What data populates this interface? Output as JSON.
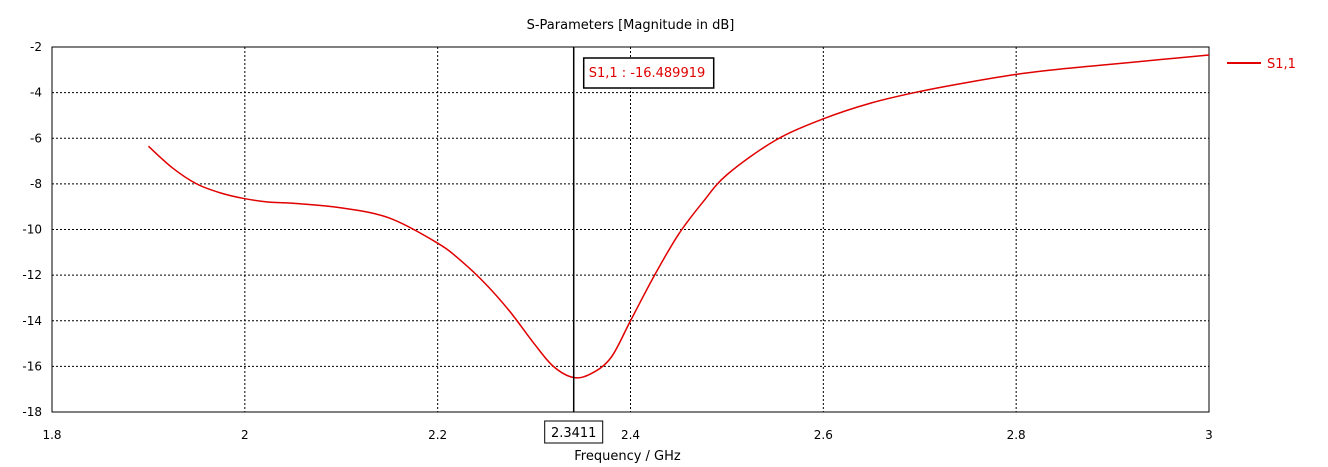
{
  "chart_data": {
    "type": "line",
    "title": "S-Parameters [Magnitude in dB]",
    "xlabel": "Frequency / GHz",
    "ylabel": "",
    "xlim": [
      1.8,
      3.0
    ],
    "ylim": [
      -18,
      -2
    ],
    "x_ticks": [
      "1.8",
      "2",
      "2.2",
      "2.4",
      "2.6",
      "2.8",
      "3"
    ],
    "y_ticks": [
      "-2",
      "-4",
      "-6",
      "-8",
      "-10",
      "-12",
      "-14",
      "-16",
      "-18"
    ],
    "grid": true,
    "legend_position": "top-right",
    "series": [
      {
        "name": "S1,1",
        "color": "#e00000",
        "x": [
          1.9,
          1.925,
          1.95,
          1.975,
          2.0,
          2.025,
          2.05,
          2.1,
          2.15,
          2.2,
          2.225,
          2.25,
          2.275,
          2.3,
          2.32,
          2.3411,
          2.36,
          2.38,
          2.4,
          2.425,
          2.45,
          2.475,
          2.5,
          2.55,
          2.6,
          2.65,
          2.7,
          2.75,
          2.8,
          2.85,
          2.9,
          2.95,
          3.0
        ],
        "y": [
          -6.35,
          -7.3,
          -8.0,
          -8.4,
          -8.65,
          -8.8,
          -8.85,
          -9.05,
          -9.5,
          -10.6,
          -11.4,
          -12.4,
          -13.6,
          -15.0,
          -16.0,
          -16.49,
          -16.3,
          -15.6,
          -14.0,
          -12.0,
          -10.2,
          -8.8,
          -7.6,
          -6.1,
          -5.15,
          -4.45,
          -3.95,
          -3.55,
          -3.2,
          -2.95,
          -2.75,
          -2.55,
          -2.35
        ]
      }
    ],
    "marker": {
      "x": 2.3411,
      "x_label": "2.3411",
      "label": "S1,1 : -16.489919",
      "color": "#000000"
    }
  }
}
